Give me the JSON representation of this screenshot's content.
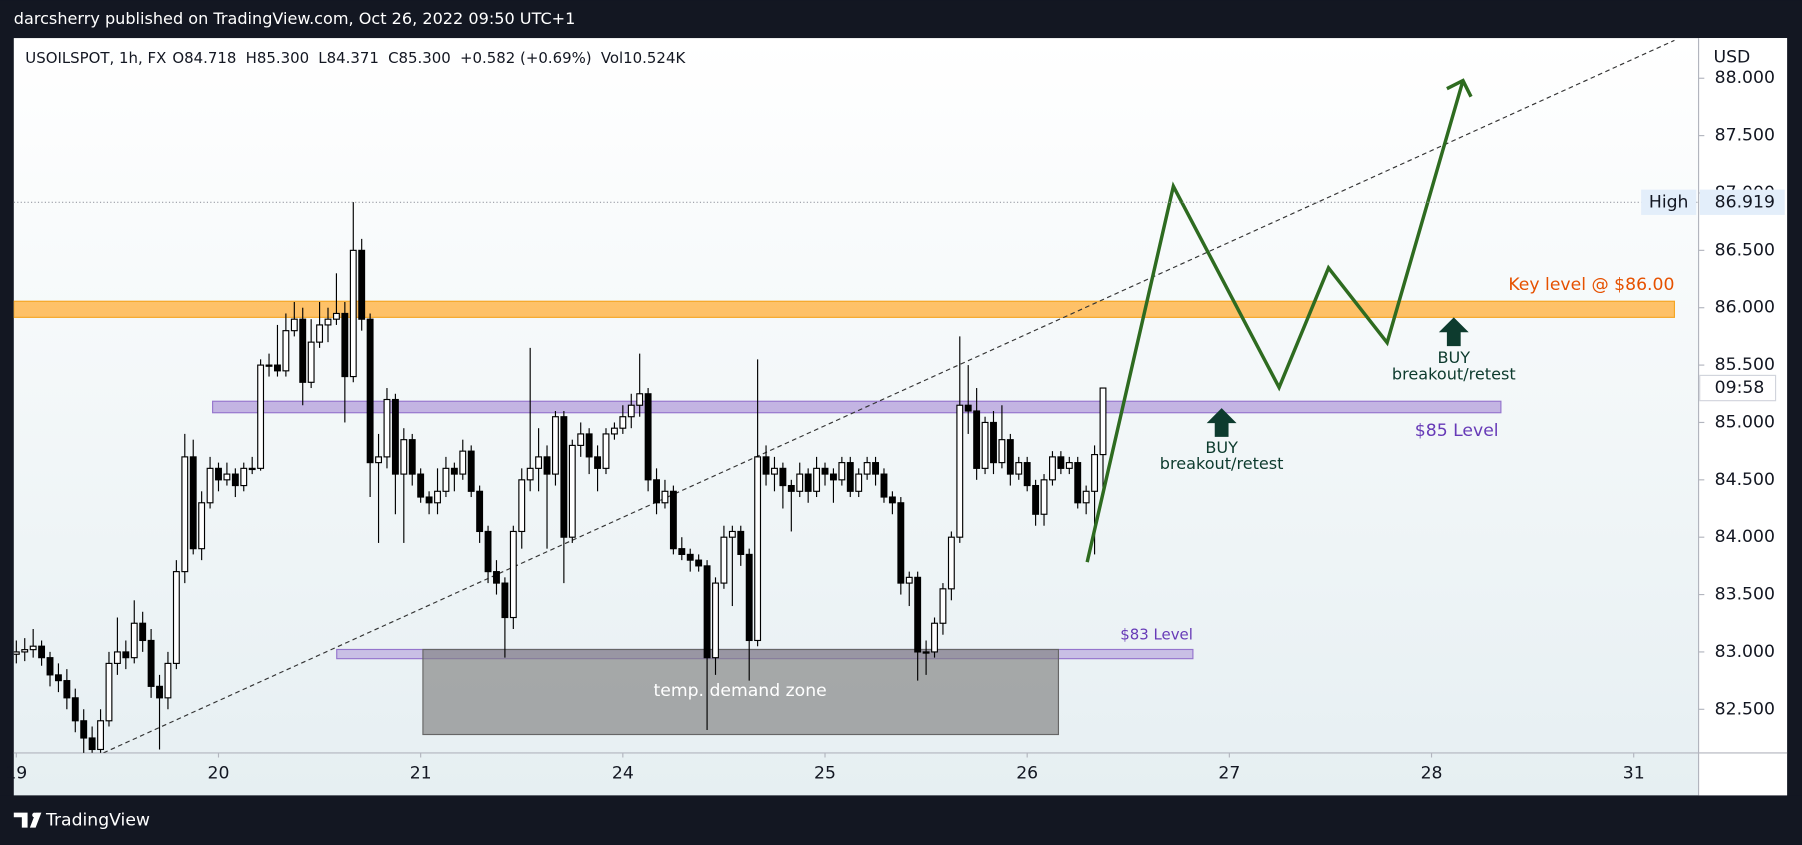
{
  "chart_data": {
    "type": "candlestick",
    "publisher": "darcsherry published on TradingView.com, Oct 26, 2022 09:50 UTC+1",
    "symbol": "USOILSPOT, 1h, FX",
    "ohlc_header": [
      "O84.718",
      "H85.300",
      "L84.371",
      "C85.300",
      "+0.582 (+0.69%)",
      "Vol10.524K"
    ],
    "currency": "USD",
    "brand": "TradingView",
    "countdown": "09:58",
    "high_label": "High",
    "high_value": 86.919,
    "annotations": {
      "key_level": "Key level @ $86.00",
      "level_85": "$85 Level",
      "level_83": "$83 Level",
      "demand_zone": "temp. demand zone",
      "buy_1": "BUY",
      "buy_1_note": "breakout/retest",
      "buy_2": "BUY",
      "buy_2_note": "breakout/retest"
    },
    "up_color": "#ffffff",
    "down_color": "#000000",
    "outline_color": "#000000",
    "xlim": [
      -0.3,
      199.7
    ],
    "xticks": [
      {
        "value": 0,
        "label": "19"
      },
      {
        "value": 24,
        "label": "20"
      },
      {
        "value": 48,
        "label": "21"
      },
      {
        "value": 72,
        "label": "24"
      },
      {
        "value": 96,
        "label": "25"
      },
      {
        "value": 120,
        "label": "26"
      },
      {
        "value": 144,
        "label": "27"
      },
      {
        "value": 168,
        "label": "28"
      },
      {
        "value": 192,
        "label": "31"
      }
    ],
    "ylim": [
      82.12,
      88.33
    ],
    "yticks": [
      {
        "value": 82.5,
        "label": "82.500"
      },
      {
        "value": 83,
        "label": "83.000"
      },
      {
        "value": 83.5,
        "label": "83.500"
      },
      {
        "value": 84,
        "label": "84.000"
      },
      {
        "value": 84.5,
        "label": "84.500"
      },
      {
        "value": 85,
        "label": "85.000"
      },
      {
        "value": 85.5,
        "label": "85.500"
      },
      {
        "value": 86,
        "label": "86.000"
      },
      {
        "value": 86.5,
        "label": "86.500"
      },
      {
        "value": 87,
        "label": "87.000"
      },
      {
        "value": 87.5,
        "label": "87.500"
      },
      {
        "value": 88,
        "label": "88.000"
      }
    ],
    "candles": [
      [
        82.98,
        83.1,
        82.9,
        83.0
      ],
      [
        83.0,
        83.12,
        82.92,
        83.02
      ],
      [
        83.02,
        83.2,
        82.95,
        83.05
      ],
      [
        83.05,
        83.1,
        82.88,
        82.95
      ],
      [
        82.95,
        83.0,
        82.7,
        82.8
      ],
      [
        82.8,
        82.9,
        82.65,
        82.75
      ],
      [
        82.75,
        82.85,
        82.5,
        82.6
      ],
      [
        82.6,
        82.68,
        82.3,
        82.4
      ],
      [
        82.4,
        82.5,
        82.1,
        82.25
      ],
      [
        82.25,
        82.35,
        82.12,
        82.15
      ],
      [
        82.15,
        82.5,
        82.12,
        82.4
      ],
      [
        82.4,
        83.0,
        82.35,
        82.9
      ],
      [
        82.9,
        83.3,
        82.8,
        83.0
      ],
      [
        83.0,
        83.1,
        82.85,
        82.95
      ],
      [
        82.95,
        83.45,
        82.9,
        83.25
      ],
      [
        83.25,
        83.35,
        83.0,
        83.1
      ],
      [
        83.1,
        83.2,
        82.6,
        82.7
      ],
      [
        82.7,
        82.8,
        82.15,
        82.6
      ],
      [
        82.6,
        83.0,
        82.5,
        82.9
      ],
      [
        82.9,
        83.8,
        82.85,
        83.7
      ],
      [
        83.7,
        84.9,
        83.6,
        84.7
      ],
      [
        84.7,
        84.85,
        83.85,
        83.9
      ],
      [
        83.9,
        84.4,
        83.8,
        84.3
      ],
      [
        84.3,
        84.7,
        84.25,
        84.6
      ],
      [
        84.6,
        84.65,
        84.4,
        84.5
      ],
      [
        84.5,
        84.65,
        84.45,
        84.55
      ],
      [
        84.55,
        84.6,
        84.35,
        84.45
      ],
      [
        84.45,
        84.65,
        84.4,
        84.6
      ],
      [
        84.6,
        84.7,
        84.55,
        84.6
      ],
      [
        84.6,
        85.55,
        84.58,
        85.5
      ],
      [
        85.5,
        85.6,
        85.4,
        85.5
      ],
      [
        85.5,
        85.85,
        85.4,
        85.45
      ],
      [
        85.45,
        85.95,
        85.4,
        85.8
      ],
      [
        85.8,
        86.05,
        85.75,
        85.9
      ],
      [
        85.9,
        86.0,
        85.15,
        85.35
      ],
      [
        85.35,
        85.9,
        85.3,
        85.7
      ],
      [
        85.7,
        86.05,
        85.65,
        85.85
      ],
      [
        85.85,
        86.0,
        85.7,
        85.9
      ],
      [
        85.9,
        86.3,
        85.85,
        85.95
      ],
      [
        85.95,
        86.05,
        85.0,
        85.4
      ],
      [
        85.4,
        86.92,
        85.35,
        86.5
      ],
      [
        86.5,
        86.6,
        85.8,
        85.9
      ],
      [
        85.9,
        85.95,
        84.35,
        84.65
      ],
      [
        84.65,
        84.9,
        83.95,
        84.7
      ],
      [
        84.7,
        85.3,
        84.6,
        85.2
      ],
      [
        85.2,
        85.25,
        84.2,
        84.55
      ],
      [
        84.55,
        84.95,
        83.95,
        84.85
      ],
      [
        84.85,
        84.9,
        84.45,
        84.55
      ],
      [
        84.55,
        84.6,
        84.3,
        84.35
      ],
      [
        84.35,
        84.4,
        84.2,
        84.3
      ],
      [
        84.3,
        84.6,
        84.2,
        84.4
      ],
      [
        84.4,
        84.7,
        84.35,
        84.6
      ],
      [
        84.6,
        84.65,
        84.4,
        84.55
      ],
      [
        84.55,
        84.85,
        84.5,
        84.75
      ],
      [
        84.75,
        84.8,
        84.35,
        84.4
      ],
      [
        84.4,
        84.45,
        83.95,
        84.05
      ],
      [
        84.05,
        84.1,
        83.6,
        83.7
      ],
      [
        83.7,
        83.8,
        83.5,
        83.6
      ],
      [
        83.6,
        83.65,
        82.95,
        83.3
      ],
      [
        83.3,
        84.1,
        83.2,
        84.05
      ],
      [
        84.05,
        84.6,
        83.9,
        84.5
      ],
      [
        84.5,
        85.65,
        84.4,
        84.6
      ],
      [
        84.6,
        84.95,
        84.4,
        84.7
      ],
      [
        84.7,
        84.8,
        83.9,
        84.55
      ],
      [
        84.55,
        85.1,
        84.45,
        85.05
      ],
      [
        85.05,
        85.1,
        83.6,
        84.0
      ],
      [
        84.0,
        84.85,
        83.95,
        84.8
      ],
      [
        84.8,
        85.0,
        84.7,
        84.9
      ],
      [
        84.9,
        84.95,
        84.55,
        84.7
      ],
      [
        84.7,
        84.8,
        84.4,
        84.6
      ],
      [
        84.6,
        84.95,
        84.55,
        84.9
      ],
      [
        84.9,
        85.0,
        84.85,
        84.95
      ],
      [
        84.95,
        85.15,
        84.9,
        85.05
      ],
      [
        85.05,
        85.25,
        84.95,
        85.15
      ],
      [
        85.15,
        85.6,
        85.05,
        85.25
      ],
      [
        85.25,
        85.3,
        84.4,
        84.5
      ],
      [
        84.5,
        84.6,
        84.2,
        84.3
      ],
      [
        84.3,
        84.5,
        84.25,
        84.4
      ],
      [
        84.4,
        84.45,
        83.85,
        83.9
      ],
      [
        83.9,
        84.0,
        83.8,
        83.85
      ],
      [
        83.85,
        83.9,
        83.7,
        83.8
      ],
      [
        83.8,
        83.85,
        83.7,
        83.75
      ],
      [
        83.75,
        83.8,
        82.32,
        82.95
      ],
      [
        82.95,
        83.65,
        82.8,
        83.6
      ],
      [
        83.6,
        84.1,
        83.55,
        84.0
      ],
      [
        84.0,
        84.1,
        83.4,
        84.05
      ],
      [
        84.05,
        84.1,
        83.75,
        83.85
      ],
      [
        83.85,
        83.9,
        82.75,
        83.1
      ],
      [
        83.1,
        85.55,
        83.05,
        84.7
      ],
      [
        84.7,
        84.8,
        84.45,
        84.55
      ],
      [
        84.55,
        84.7,
        84.4,
        84.6
      ],
      [
        84.6,
        84.65,
        84.25,
        84.45
      ],
      [
        84.45,
        84.5,
        84.05,
        84.4
      ],
      [
        84.4,
        84.65,
        84.35,
        84.55
      ],
      [
        84.55,
        84.6,
        84.3,
        84.4
      ],
      [
        84.4,
        84.7,
        84.35,
        84.6
      ],
      [
        84.6,
        84.65,
        84.45,
        84.55
      ],
      [
        84.55,
        84.6,
        84.3,
        84.5
      ],
      [
        84.5,
        84.7,
        84.45,
        84.65
      ],
      [
        84.65,
        84.7,
        84.35,
        84.4
      ],
      [
        84.4,
        84.6,
        84.35,
        84.55
      ],
      [
        84.55,
        84.7,
        84.5,
        84.65
      ],
      [
        84.65,
        84.7,
        84.45,
        84.55
      ],
      [
        84.55,
        84.6,
        84.3,
        84.35
      ],
      [
        84.35,
        84.4,
        84.2,
        84.3
      ],
      [
        84.3,
        84.35,
        83.5,
        83.6
      ],
      [
        83.6,
        83.7,
        83.4,
        83.65
      ],
      [
        83.65,
        83.7,
        82.75,
        83.0
      ],
      [
        83.0,
        83.1,
        82.8,
        83.0
      ],
      [
        83.0,
        83.3,
        82.95,
        83.25
      ],
      [
        83.25,
        83.6,
        83.15,
        83.55
      ],
      [
        83.55,
        84.05,
        83.45,
        84.0
      ],
      [
        84.0,
        85.75,
        83.95,
        85.15
      ],
      [
        85.15,
        85.5,
        84.9,
        85.1
      ],
      [
        85.1,
        85.3,
        84.5,
        84.6
      ],
      [
        84.6,
        85.05,
        84.55,
        85.0
      ],
      [
        85.0,
        85.1,
        84.55,
        84.65
      ],
      [
        84.65,
        85.15,
        84.6,
        84.85
      ],
      [
        84.85,
        84.9,
        84.45,
        84.55
      ],
      [
        84.55,
        84.7,
        84.5,
        84.65
      ],
      [
        84.65,
        84.7,
        84.4,
        84.45
      ],
      [
        84.45,
        84.5,
        84.1,
        84.2
      ],
      [
        84.2,
        84.55,
        84.1,
        84.5
      ],
      [
        84.5,
        84.75,
        84.45,
        84.7
      ],
      [
        84.7,
        84.75,
        84.55,
        84.6
      ],
      [
        84.6,
        84.7,
        84.55,
        84.65
      ],
      [
        84.65,
        84.7,
        84.25,
        84.3
      ],
      [
        84.3,
        84.45,
        84.2,
        84.4
      ],
      [
        84.4,
        84.8,
        83.85,
        84.72
      ],
      [
        84.72,
        85.3,
        84.37,
        85.3
      ]
    ]
  }
}
